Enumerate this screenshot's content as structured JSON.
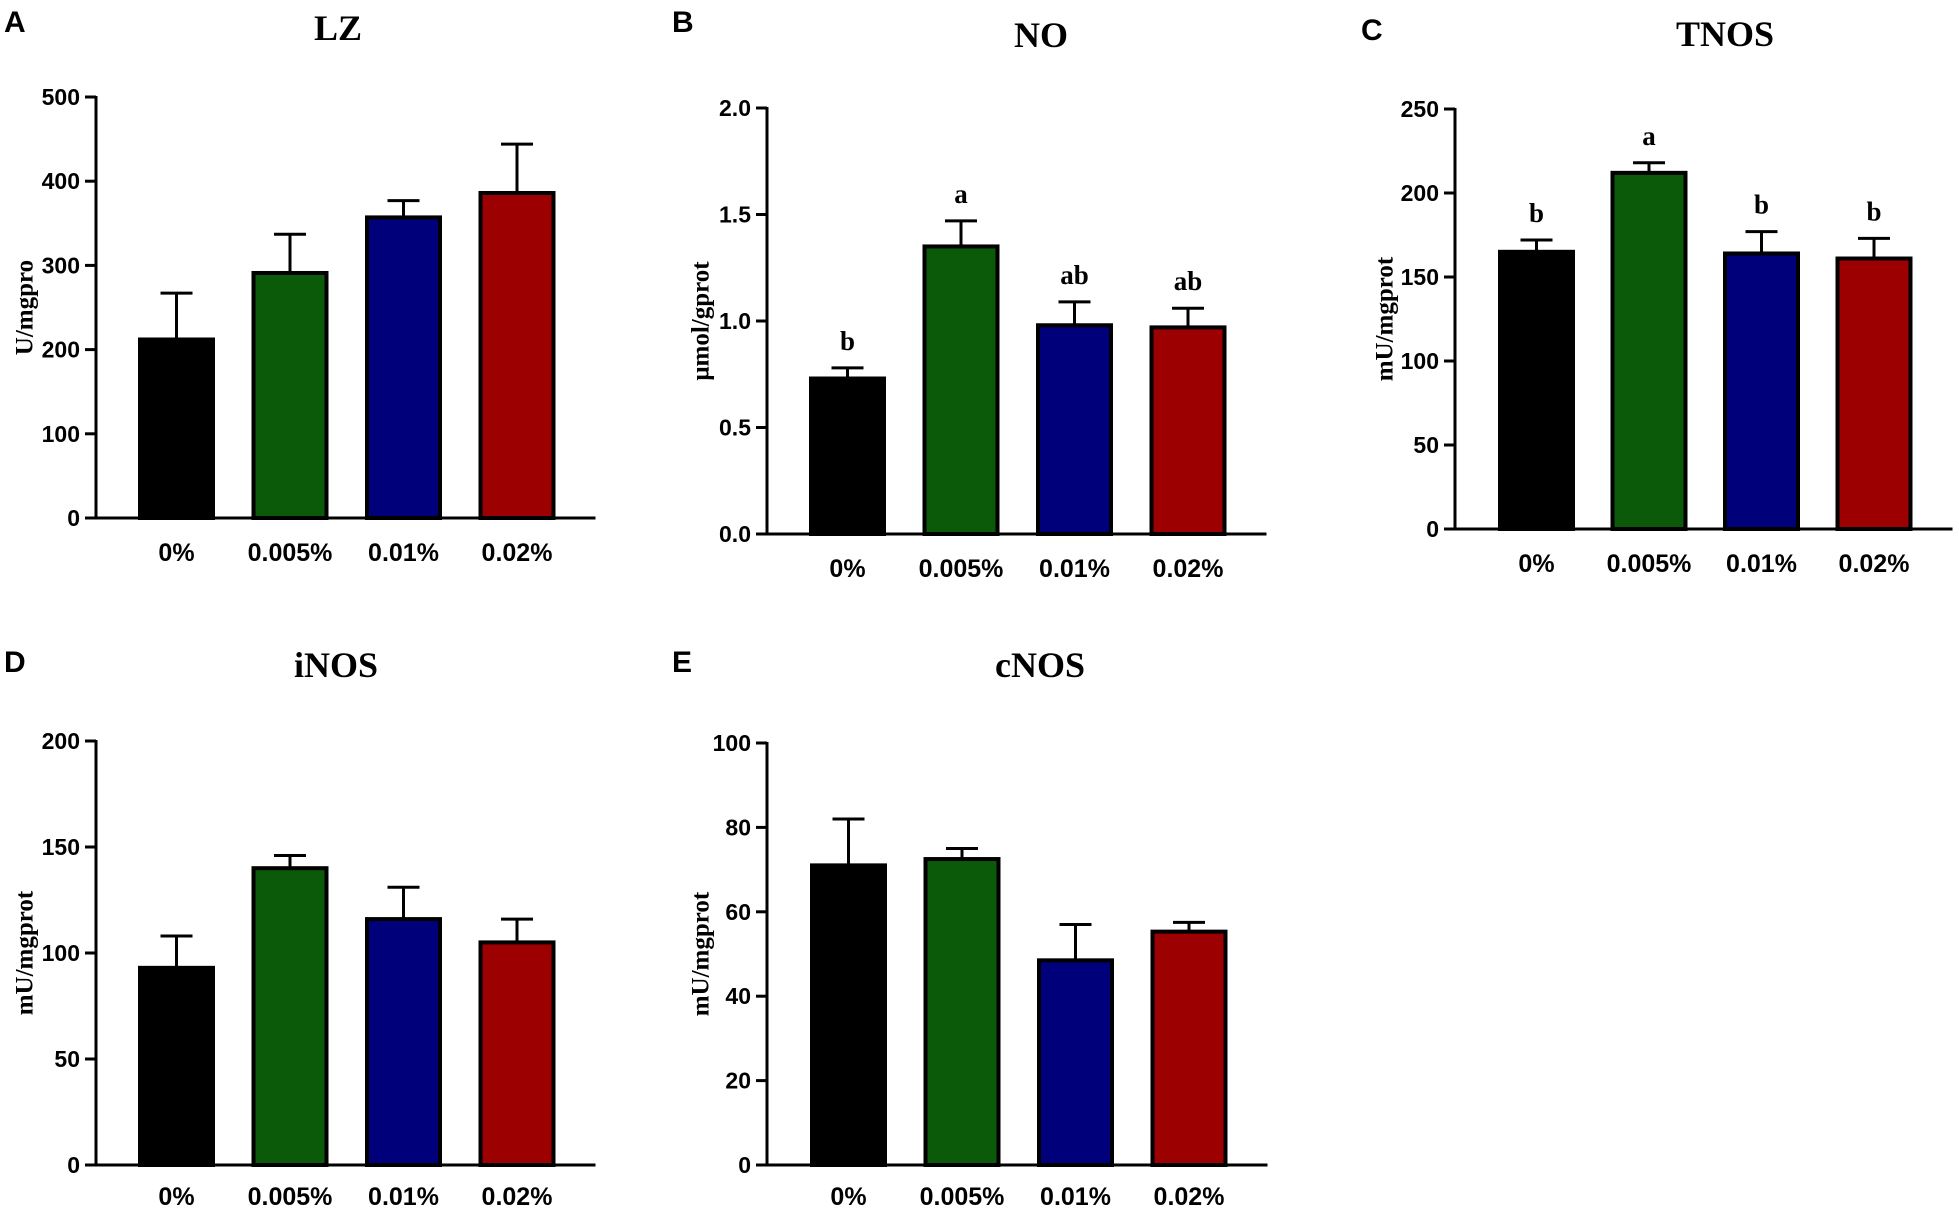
{
  "chart_data": [
    {
      "panel": "A",
      "type": "bar",
      "title": "LZ",
      "ylabel": "U/mgpro",
      "ylim": [
        0,
        500
      ],
      "yticks": [
        0,
        100,
        200,
        300,
        400,
        500
      ],
      "categories": [
        "0%",
        "0.005%",
        "0.01%",
        "0.02%"
      ],
      "values": [
        212,
        291,
        357,
        386
      ],
      "errors": [
        55,
        46,
        20,
        58
      ],
      "significance": [
        "",
        "",
        "",
        ""
      ]
    },
    {
      "panel": "B",
      "type": "bar",
      "title": "NO",
      "ylabel": "μmol/gprot",
      "ylim": [
        0,
        2.0
      ],
      "yticks": [
        0.0,
        0.5,
        1.0,
        1.5,
        2.0
      ],
      "ytick_labels": [
        "0.0",
        "0.5",
        "1.0",
        "1.5",
        "2.0"
      ],
      "categories": [
        "0%",
        "0.005%",
        "0.01%",
        "0.02%"
      ],
      "values": [
        0.73,
        1.35,
        0.98,
        0.97
      ],
      "errors": [
        0.05,
        0.12,
        0.11,
        0.09
      ],
      "significance": [
        "b",
        "a",
        "ab",
        "ab"
      ]
    },
    {
      "panel": "C",
      "type": "bar",
      "title": "TNOS",
      "ylabel": "mU/mgprot",
      "ylim": [
        0,
        250
      ],
      "yticks": [
        0,
        50,
        100,
        150,
        200,
        250
      ],
      "categories": [
        "0%",
        "0.005%",
        "0.01%",
        "0.02%"
      ],
      "values": [
        165,
        212,
        164,
        161
      ],
      "errors": [
        7,
        6,
        13,
        12
      ],
      "significance": [
        "b",
        "a",
        "b",
        "b"
      ]
    },
    {
      "panel": "D",
      "type": "bar",
      "title": "iNOS",
      "ylabel": "mU/mgprot",
      "ylim": [
        0,
        200
      ],
      "yticks": [
        0,
        50,
        100,
        150,
        200
      ],
      "categories": [
        "0%",
        "0.005%",
        "0.01%",
        "0.02%"
      ],
      "values": [
        93,
        140,
        116,
        105
      ],
      "errors": [
        15,
        6,
        15,
        11
      ],
      "significance": [
        "",
        "",
        "",
        ""
      ]
    },
    {
      "panel": "E",
      "type": "bar",
      "title": "cNOS",
      "ylabel": "mU/mgprot",
      "ylim": [
        0,
        100
      ],
      "yticks": [
        0,
        20,
        40,
        60,
        80,
        100
      ],
      "categories": [
        "0%",
        "0.005%",
        "0.01%",
        "0.02%"
      ],
      "values": [
        71,
        72.5,
        48.5,
        55.3
      ],
      "errors": [
        11,
        2.5,
        8.5,
        2.2
      ],
      "significance": [
        "",
        "",
        "",
        ""
      ]
    }
  ],
  "colors": [
    "#000000",
    "#0a5a0a",
    "#00007a",
    "#9c0000"
  ]
}
